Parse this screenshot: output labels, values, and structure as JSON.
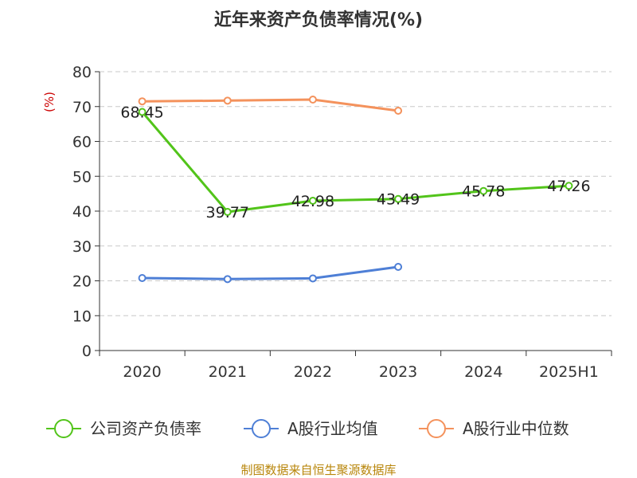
{
  "chart_data": {
    "type": "line",
    "title": "近年来资产负债率情况(%)",
    "ylabel": "(%)",
    "ylim": [
      0,
      80
    ],
    "yticks": [
      "0",
      "10",
      "20",
      "30",
      "40",
      "50",
      "60",
      "70",
      "80"
    ],
    "categories": [
      "2020",
      "2021",
      "2022",
      "2023",
      "2024",
      "2025H1"
    ],
    "grid": true,
    "legend_position": "bottom",
    "series": [
      {
        "name": "公司资产负债率",
        "color": "#52c41a",
        "values": [
          68.45,
          39.77,
          42.98,
          43.49,
          45.78,
          47.26
        ],
        "labels": [
          "68.45",
          "39.77",
          "42.98",
          "43.49",
          "45.78",
          "47.26"
        ]
      },
      {
        "name": "A股行业均值",
        "color": "#4e7fd6",
        "values": [
          20.8,
          20.5,
          20.7,
          24.0,
          null,
          null
        ]
      },
      {
        "name": "A股行业中位数",
        "color": "#f4925c",
        "values": [
          71.5,
          71.7,
          72.0,
          68.8,
          null,
          null
        ]
      }
    ]
  },
  "source_note": "制图数据来自恒生聚源数据库"
}
